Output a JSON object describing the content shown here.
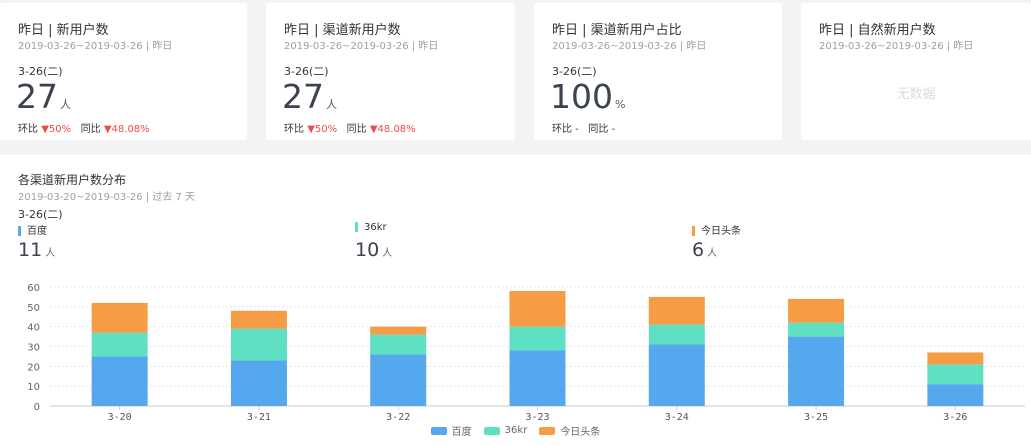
{
  "cards": [
    {
      "title": "昨日 | 新用户数",
      "subtitle": "2019-03-26~2019-03-26 | 昨日",
      "date": "3-26(二)",
      "value": "27",
      "unit": "人",
      "cmp_ring_label": "环比",
      "cmp_ring_value": "▼50%",
      "cmp_yoy_label": "同比",
      "cmp_yoy_value": "▼48.08%"
    },
    {
      "title": "昨日 | 渠道新用户数",
      "subtitle": "2019-03-26~2019-03-26 | 昨日",
      "date": "3-26(二)",
      "value": "27",
      "unit": "人",
      "cmp_ring_label": "环比",
      "cmp_ring_value": "▼50%",
      "cmp_yoy_label": "同比",
      "cmp_yoy_value": "▼48.08%"
    },
    {
      "title": "昨日 | 渠道新用户占比",
      "subtitle": "2019-03-26~2019-03-26 | 昨日",
      "date": "3-26(二)",
      "value": "100",
      "unit": "%",
      "cmp_ring_label": "环比 -",
      "cmp_yoy_label": "同比 -"
    },
    {
      "title": "昨日 | 自然新用户数",
      "subtitle": "2019-03-26~2019-03-26 | 昨日",
      "nodata": "无数据"
    }
  ],
  "section": {
    "title": "各渠道新用户数分布",
    "subtitle": "2019-03-20~2019-03-26 | 过去 7 天",
    "date": "3-26(二)",
    "legend_items": [
      {
        "name": "百度",
        "value": "11",
        "unit": "人",
        "color": "#55a8ee"
      },
      {
        "name": "36kr",
        "value": "10",
        "unit": "人",
        "color": "#5fe0c2"
      },
      {
        "name": "今日头条",
        "value": "6",
        "unit": "人",
        "color": "#f59c45"
      }
    ]
  },
  "chart_data": {
    "type": "bar",
    "stacked": true,
    "categories": [
      "3-20",
      "3-21",
      "3-22",
      "3-23",
      "3-24",
      "3-25",
      "3-26"
    ],
    "series": [
      {
        "name": "百度",
        "color": "#55a8ee",
        "values": [
          25,
          23,
          26,
          28,
          31,
          35,
          11
        ]
      },
      {
        "name": "36kr",
        "color": "#5fe0c2",
        "values": [
          12,
          16,
          10,
          12,
          10,
          7,
          10
        ]
      },
      {
        "name": "今日头条",
        "color": "#f59c45",
        "values": [
          15,
          9,
          4,
          18,
          14,
          12,
          6
        ]
      }
    ],
    "yticks": [
      "0",
      "10",
      "20",
      "30",
      "40",
      "50",
      "60"
    ],
    "ylim": [
      0,
      60
    ],
    "grid": true,
    "legend_position": "bottom"
  }
}
